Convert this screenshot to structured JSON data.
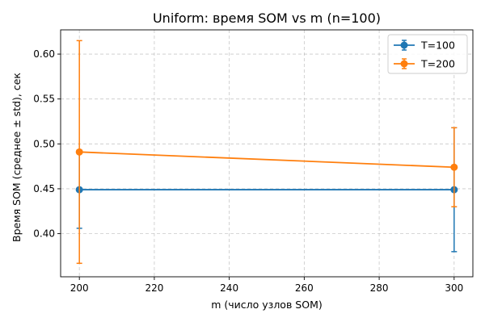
{
  "chart_data": {
    "type": "line",
    "title": "Uniform: время SOM vs m (n=100)",
    "xlabel": "m (число узлов SOM)",
    "ylabel": "Время SOM (среднее ± std), сек",
    "x": [
      200,
      300
    ],
    "xlim": [
      195,
      305
    ],
    "ylim": [
      0.352,
      0.627
    ],
    "xticks": [
      200,
      220,
      240,
      260,
      280,
      300
    ],
    "yticks": [
      0.4,
      0.45,
      0.5,
      0.55,
      0.6
    ],
    "ytick_labels": [
      "0.40",
      "0.45",
      "0.50",
      "0.55",
      "0.60"
    ],
    "grid": true,
    "legend_position": "top-right",
    "series": [
      {
        "name": "T=100",
        "color": "#1f77b4",
        "values": [
          0.449,
          0.449
        ],
        "err": [
          0.043,
          0.069
        ]
      },
      {
        "name": "T=200",
        "color": "#ff7f0e",
        "values": [
          0.491,
          0.474
        ],
        "err": [
          0.124,
          0.044
        ]
      }
    ]
  }
}
